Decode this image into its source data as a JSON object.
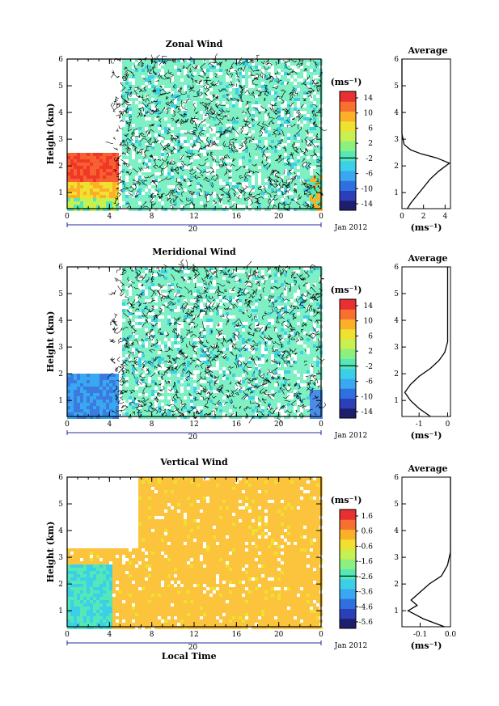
{
  "figure": {
    "date_label": "Jan 2012",
    "day_label": "20",
    "unit_label": "(ms⁻¹)",
    "average_title": "Average",
    "xlabel": "Local Time",
    "ylabel": "Height (km)"
  },
  "chart_data": [
    {
      "type": "heatmap",
      "title": "Zonal Wind",
      "xlabel": "",
      "ylabel": "Height (km)",
      "xlim": [
        0,
        24
      ],
      "ylim": [
        0.4,
        6
      ],
      "xticks": [
        "0",
        "4",
        "8",
        "12",
        "16",
        "20",
        "0"
      ],
      "yticks": [
        "1",
        "2",
        "3",
        "4",
        "5",
        "6"
      ],
      "colorbar": {
        "unit": "(ms⁻¹)",
        "ticks": [
          "14",
          "10",
          "6",
          "2",
          "-2",
          "-6",
          "-10",
          "-14"
        ],
        "range": [
          -16,
          16
        ],
        "colors": [
          "#1e1e6e",
          "#2b40b8",
          "#2f6fe0",
          "#38a8f0",
          "#3cd0e8",
          "#54e8b8",
          "#8cf080",
          "#c8f050",
          "#f0e030",
          "#fcb028",
          "#f87030",
          "#e83030"
        ]
      },
      "average_profile": {
        "title": "Average",
        "xlabel": "(ms⁻¹)",
        "xticks": [
          "0",
          "2",
          "4"
        ],
        "xlim": [
          0,
          4.5
        ],
        "height_km": [
          0.4,
          0.6,
          0.9,
          1.2,
          1.5,
          1.8,
          2.1,
          2.3,
          2.45,
          2.6,
          2.8,
          3.2,
          4,
          5,
          6
        ],
        "value_ms": [
          0.5,
          0.8,
          1.4,
          2.0,
          2.6,
          3.4,
          4.4,
          3.2,
          1.8,
          0.8,
          0.2,
          0.0,
          0.0,
          0.0,
          0.0
        ]
      }
    },
    {
      "type": "heatmap",
      "title": "Meridional Wind",
      "xlabel": "",
      "ylabel": "Height (km)",
      "xlim": [
        0,
        24
      ],
      "ylim": [
        0.4,
        6
      ],
      "xticks": [
        "0",
        "4",
        "8",
        "12",
        "16",
        "20",
        "0"
      ],
      "yticks": [
        "1",
        "2",
        "3",
        "4",
        "5",
        "6"
      ],
      "colorbar": {
        "unit": "(ms⁻¹)",
        "ticks": [
          "14",
          "10",
          "6",
          "2",
          "-2",
          "-6",
          "-10",
          "-14"
        ],
        "range": [
          -16,
          16
        ],
        "colors": [
          "#1e1e6e",
          "#2b40b8",
          "#2f6fe0",
          "#38a8f0",
          "#3cd0e8",
          "#54e8b8",
          "#8cf080",
          "#c8f050",
          "#f0e030",
          "#fcb028",
          "#f87030",
          "#e83030"
        ]
      },
      "average_profile": {
        "title": "Average",
        "xlabel": "(ms⁻¹)",
        "xticks": [
          "-1",
          "0"
        ],
        "xlim": [
          -1.6,
          0.1
        ],
        "height_km": [
          0.4,
          0.7,
          1.0,
          1.3,
          1.6,
          1.9,
          2.2,
          2.5,
          2.8,
          3.2,
          4,
          5,
          6
        ],
        "value_ms": [
          -0.6,
          -1.0,
          -1.3,
          -1.5,
          -1.3,
          -1.0,
          -0.6,
          -0.3,
          -0.1,
          0.0,
          0.0,
          0.0,
          0.0
        ]
      }
    },
    {
      "type": "heatmap",
      "title": "Vertical Wind",
      "xlabel": "Local Time",
      "ylabel": "Height (km)",
      "xlim": [
        0,
        24
      ],
      "ylim": [
        0.4,
        6
      ],
      "xticks": [
        "0",
        "4",
        "8",
        "12",
        "16",
        "20",
        "0"
      ],
      "yticks": [
        "1",
        "2",
        "3",
        "4",
        "5",
        "6"
      ],
      "colorbar": {
        "unit": "(ms⁻¹)",
        "ticks": [
          "1.6",
          "0.6",
          "-0.6",
          "-1.6",
          "-2.6",
          "-3.6",
          "-4.6",
          "-5.6"
        ],
        "range": [
          -6,
          2
        ],
        "colors": [
          "#1e1e6e",
          "#2b40b8",
          "#2f6fe0",
          "#38a8f0",
          "#3cd0e8",
          "#54e8b8",
          "#8cf080",
          "#c8f050",
          "#f0e030",
          "#fcb028",
          "#f87030",
          "#e83030"
        ]
      },
      "average_profile": {
        "title": "Average",
        "xlabel": "(ms⁻¹)",
        "xticks": [
          "-0.1",
          "0.0"
        ],
        "xlim": [
          -0.16,
          0.0
        ],
        "height_km": [
          0.4,
          0.7,
          1.0,
          1.2,
          1.4,
          1.7,
          2.0,
          2.3,
          2.7,
          3.2,
          4,
          5,
          6
        ],
        "value_ms": [
          -0.02,
          -0.09,
          -0.14,
          -0.11,
          -0.13,
          -0.1,
          -0.07,
          -0.03,
          -0.01,
          0.0,
          0.0,
          0.0,
          0.0
        ]
      }
    }
  ]
}
